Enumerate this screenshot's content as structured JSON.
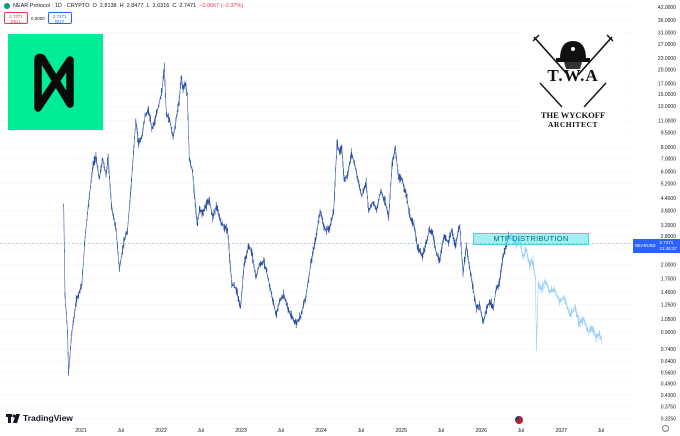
{
  "header": {
    "symbol": "NEAR Protocol · 1D · CRYPTO",
    "o_label": "O",
    "o_value": "2.8138",
    "h_label": "H",
    "h_value": "2.8477",
    "l_label": "L",
    "l_value": "2.6316",
    "c_label": "C",
    "c_value": "2.7471",
    "change": "−0.0667 (−2.37%)"
  },
  "orders": {
    "sell_price": "2.7471",
    "sell_label": "SELL",
    "spread": "0.0000",
    "buy_price": "2.7471",
    "buy_label": "BUY"
  },
  "annotation": {
    "label": "MTF DISTRIBUTION"
  },
  "watermark": {
    "initials": "T.W.A",
    "name_line1": "THE WYCKOFF",
    "name_line2": "ARCHITECT"
  },
  "brand": {
    "tradingview": "TradingView"
  },
  "price_tag": {
    "symbol": "NEARUSD",
    "price": "2.7471",
    "countdown": "21:45:37"
  },
  "colors": {
    "candle": "#2a4ea3",
    "projection": "#90caf9",
    "near_green": "#00ec97",
    "distribution_fill": "#4dd0e1",
    "tag_blue": "#2962ff"
  },
  "chart_data": {
    "type": "line",
    "scale": "log",
    "ylim": [
      0.32,
      42.0
    ],
    "x_ticks": [
      "2021",
      "Jul",
      "2022",
      "Jul",
      "2023",
      "Jul",
      "2024",
      "Jul",
      "2025",
      "Jul",
      "2026",
      "Jul",
      "2027",
      "Jul"
    ],
    "y_ticks": [
      "42.0000",
      "36.0000",
      "31.0000",
      "27.0000",
      "23.0000",
      "20.0000",
      "17.0000",
      "15.0000",
      "13.0000",
      "11.0000",
      "9.5000",
      "8.0000",
      "7.0000",
      "6.0000",
      "5.2000",
      "4.4000",
      "3.8000",
      "3.2000",
      "2.8000",
      "2.4000",
      "2.0000",
      "1.7000",
      "1.4500",
      "1.2500",
      "1.0500",
      "0.9000",
      "0.7400",
      "0.6400",
      "0.5600",
      "0.4900",
      "0.4300",
      "0.3750",
      "0.3250"
    ],
    "series": [
      {
        "values": [
          [
            "2020-10-14",
            4.0
          ],
          [
            "2020-10-20",
            1.4
          ],
          [
            "2020-11-01",
            0.9
          ],
          [
            "2020-11-05",
            0.55
          ],
          [
            "2020-11-20",
            0.9
          ],
          [
            "2020-12-10",
            1.3
          ],
          [
            "2021-01-05",
            1.6
          ],
          [
            "2021-01-20",
            2.8
          ],
          [
            "2021-02-08",
            4.5
          ],
          [
            "2021-02-25",
            6.5
          ],
          [
            "2021-03-10",
            7.2
          ],
          [
            "2021-03-25",
            5.5
          ],
          [
            "2021-04-10",
            7.0
          ],
          [
            "2021-04-25",
            5.8
          ],
          [
            "2021-05-05",
            7.0
          ],
          [
            "2021-05-20",
            4.0
          ],
          [
            "2021-06-10",
            3.0
          ],
          [
            "2021-06-25",
            1.9
          ],
          [
            "2021-07-15",
            2.6
          ],
          [
            "2021-08-01",
            3.0
          ],
          [
            "2021-08-20",
            5.5
          ],
          [
            "2021-09-08",
            11.0
          ],
          [
            "2021-09-20",
            8.5
          ],
          [
            "2021-10-05",
            9.0
          ],
          [
            "2021-10-20",
            11.5
          ],
          [
            "2021-11-05",
            12.5
          ],
          [
            "2021-11-20",
            10.0
          ],
          [
            "2021-12-05",
            11.0
          ],
          [
            "2021-12-20",
            13.0
          ],
          [
            "2022-01-05",
            15.5
          ],
          [
            "2022-01-16",
            20.5
          ],
          [
            "2022-01-25",
            12.0
          ],
          [
            "2022-02-10",
            11.0
          ],
          [
            "2022-02-25",
            9.0
          ],
          [
            "2022-03-10",
            11.0
          ],
          [
            "2022-03-25",
            14.0
          ],
          [
            "2022-04-03",
            18.5
          ],
          [
            "2022-04-12",
            16.0
          ],
          [
            "2022-04-22",
            17.0
          ],
          [
            "2022-05-01",
            15.0
          ],
          [
            "2022-05-10",
            7.0
          ],
          [
            "2022-05-25",
            6.0
          ],
          [
            "2022-06-15",
            3.2
          ],
          [
            "2022-06-25",
            3.8
          ],
          [
            "2022-07-10",
            3.7
          ],
          [
            "2022-07-25",
            4.0
          ],
          [
            "2022-08-10",
            4.3
          ],
          [
            "2022-08-25",
            3.5
          ],
          [
            "2022-09-10",
            4.0
          ],
          [
            "2022-10-01",
            3.3
          ],
          [
            "2022-11-01",
            3.0
          ],
          [
            "2022-11-10",
            2.2
          ],
          [
            "2022-11-20",
            1.6
          ],
          [
            "2022-12-10",
            1.5
          ],
          [
            "2022-12-30",
            1.2
          ],
          [
            "2023-01-15",
            2.0
          ],
          [
            "2023-02-05",
            2.5
          ],
          [
            "2023-02-20",
            2.3
          ],
          [
            "2023-03-10",
            1.7
          ],
          [
            "2023-03-25",
            2.0
          ],
          [
            "2023-04-15",
            2.1
          ],
          [
            "2023-05-10",
            1.6
          ],
          [
            "2023-06-10",
            1.1
          ],
          [
            "2023-06-25",
            1.3
          ],
          [
            "2023-07-15",
            1.4
          ],
          [
            "2023-08-15",
            1.1
          ],
          [
            "2023-09-10",
            1.0
          ],
          [
            "2023-10-01",
            1.1
          ],
          [
            "2023-10-25",
            1.4
          ],
          [
            "2023-11-15",
            2.0
          ],
          [
            "2023-12-10",
            2.8
          ],
          [
            "2023-12-28",
            3.8
          ],
          [
            "2024-01-20",
            3.0
          ],
          [
            "2024-02-10",
            3.1
          ],
          [
            "2024-02-28",
            3.8
          ],
          [
            "2024-03-14",
            8.5
          ],
          [
            "2024-03-25",
            7.5
          ],
          [
            "2024-04-05",
            8.0
          ],
          [
            "2024-04-15",
            5.5
          ],
          [
            "2024-05-01",
            5.8
          ],
          [
            "2024-05-20",
            7.5
          ],
          [
            "2024-06-10",
            6.0
          ],
          [
            "2024-06-25",
            5.0
          ],
          [
            "2024-07-05",
            4.5
          ],
          [
            "2024-07-25",
            5.3
          ],
          [
            "2024-08-05",
            3.8
          ],
          [
            "2024-08-25",
            4.2
          ],
          [
            "2024-09-10",
            3.8
          ],
          [
            "2024-09-30",
            4.8
          ],
          [
            "2024-10-20",
            4.2
          ],
          [
            "2024-11-05",
            3.5
          ],
          [
            "2024-11-20",
            6.5
          ],
          [
            "2024-12-05",
            8.0
          ],
          [
            "2024-12-20",
            5.5
          ],
          [
            "2025-01-05",
            5.5
          ],
          [
            "2025-01-25",
            4.5
          ],
          [
            "2025-02-10",
            3.5
          ],
          [
            "2025-02-28",
            3.2
          ],
          [
            "2025-03-15",
            2.5
          ],
          [
            "2025-04-07",
            2.2
          ],
          [
            "2025-04-25",
            2.6
          ],
          [
            "2025-05-10",
            3.0
          ],
          [
            "2025-05-25",
            2.9
          ],
          [
            "2025-06-10",
            2.3
          ],
          [
            "2025-06-25",
            2.1
          ],
          [
            "2025-07-15",
            2.8
          ],
          [
            "2025-08-05",
            2.6
          ],
          [
            "2025-08-20",
            3.0
          ],
          [
            "2025-09-05",
            2.5
          ],
          [
            "2025-09-25",
            3.2
          ],
          [
            "2025-10-10",
            1.8
          ],
          [
            "2025-10-25",
            2.5
          ],
          [
            "2025-11-10",
            1.9
          ],
          [
            "2025-11-25",
            1.5
          ],
          [
            "2025-12-10",
            1.2
          ],
          [
            "2025-12-25",
            1.25
          ],
          [
            "2026-01-10",
            1.0
          ],
          [
            "2026-01-25",
            1.2
          ],
          [
            "2026-02-10",
            1.3
          ],
          [
            "2026-02-25",
            1.2
          ],
          [
            "2026-03-10",
            1.5
          ],
          [
            "2026-03-25",
            1.6
          ],
          [
            "2026-04-10",
            2.2
          ],
          [
            "2026-04-25",
            2.5
          ],
          [
            "2026-05-05",
            2.85
          ],
          [
            "2026-05-12",
            2.75
          ]
        ]
      },
      {
        "values": [
          [
            "2026-05-12",
            2.75
          ],
          [
            "2026-05-25",
            2.8
          ],
          [
            "2026-06-10",
            2.5
          ],
          [
            "2026-06-25",
            2.7
          ],
          [
            "2026-07-10",
            2.2
          ],
          [
            "2026-07-25",
            2.4
          ],
          [
            "2026-08-10",
            2.0
          ],
          [
            "2026-08-25",
            2.1
          ],
          [
            "2026-09-05",
            1.7
          ],
          [
            "2026-09-10",
            0.75
          ],
          [
            "2026-09-18",
            1.6
          ],
          [
            "2026-10-01",
            1.5
          ],
          [
            "2026-10-20",
            1.65
          ],
          [
            "2026-11-10",
            1.45
          ],
          [
            "2026-12-01",
            1.5
          ],
          [
            "2026-12-25",
            1.3
          ],
          [
            "2027-01-15",
            1.35
          ],
          [
            "2027-02-10",
            1.1
          ],
          [
            "2027-03-05",
            1.2
          ],
          [
            "2027-03-25",
            1.0
          ],
          [
            "2027-04-15",
            1.05
          ],
          [
            "2027-05-05",
            0.9
          ],
          [
            "2027-05-20",
            0.95
          ],
          [
            "2027-06-10",
            0.85
          ],
          [
            "2027-06-25",
            0.88
          ],
          [
            "2027-07-05",
            0.82
          ]
        ]
      }
    ]
  }
}
